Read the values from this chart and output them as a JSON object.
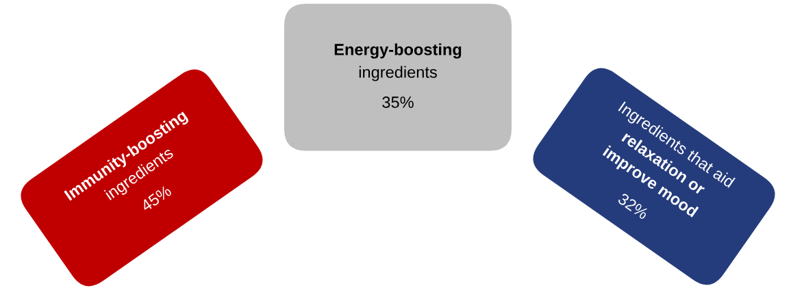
{
  "chart_data": {
    "type": "other",
    "categories": [
      "Immunity-boosting\ningredients",
      "Energy-boosting\ningredients",
      "Ingredients that aid\nrelaxation or\nimprove mood"
    ],
    "values": [
      45,
      35,
      32
    ],
    "value_labels": [
      "45%",
      "35%",
      "32%"
    ],
    "colors": [
      "#c00000",
      "#bfbfbf",
      "#253c7c"
    ]
  }
}
